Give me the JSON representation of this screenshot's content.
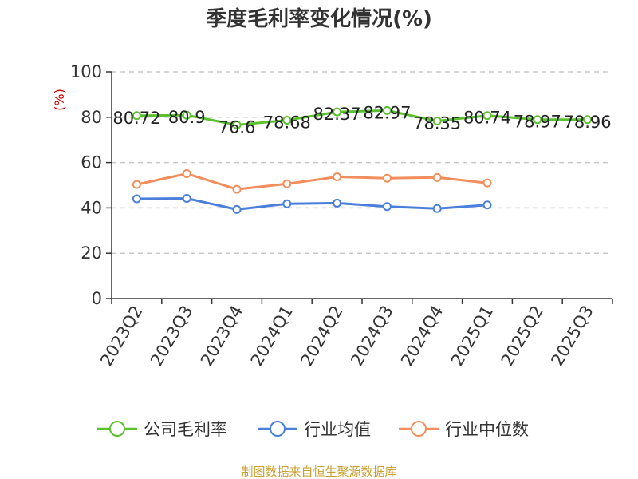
{
  "chart_data": {
    "type": "line",
    "title": "季度毛利率变化情况(%)",
    "ylabel": "(%)",
    "ylim": [
      0,
      100
    ],
    "yticks": [
      0,
      20,
      40,
      60,
      80,
      100
    ],
    "grid": true,
    "legend_position": "bottom",
    "categories": [
      "2023Q2",
      "2023Q3",
      "2023Q4",
      "2024Q1",
      "2024Q2",
      "2024Q3",
      "2024Q4",
      "2025Q1",
      "2025Q2",
      "2025Q3"
    ],
    "series": [
      {
        "name": "公司毛利率",
        "color": "#5cc12f",
        "values": [
          80.72,
          80.9,
          76.6,
          78.68,
          82.37,
          82.97,
          78.35,
          80.74,
          78.97,
          78.96
        ],
        "labels": [
          "80.72",
          "80.9",
          "76.6",
          "78.68",
          "82.37",
          "82.97",
          "78.35",
          "80.74",
          "78.97",
          "78.96"
        ]
      },
      {
        "name": "行业均值",
        "color": "#4a7fdc",
        "values": [
          44,
          44.2,
          39.3,
          41.8,
          42.1,
          40.6,
          39.7,
          41.3,
          null,
          null
        ]
      },
      {
        "name": "行业中位数",
        "color": "#f28e5c",
        "values": [
          50.3,
          55.1,
          48.2,
          50.6,
          53.7,
          53.1,
          53.4,
          51.0,
          null,
          null
        ]
      }
    ]
  },
  "footer": {
    "source": "制图数据来自恒生聚源数据库"
  }
}
